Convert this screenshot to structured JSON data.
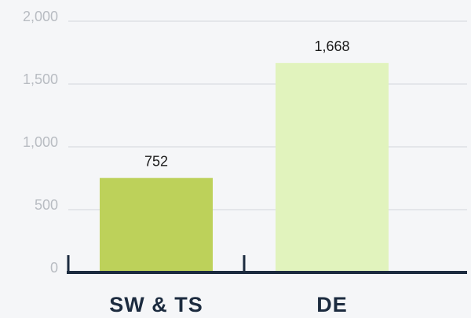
{
  "chart_data": {
    "type": "bar",
    "categories": [
      "SW & TS",
      "DE"
    ],
    "values": [
      752,
      1668
    ],
    "value_labels": [
      "752",
      "1,668"
    ],
    "colors": [
      "#bdd15a",
      "#e1f3bd"
    ],
    "ylim": [
      0,
      2000
    ],
    "yticks": [
      {
        "value": 0,
        "label": "0"
      },
      {
        "value": 500,
        "label": "500"
      },
      {
        "value": 1000,
        "label": "1,000"
      },
      {
        "value": 1500,
        "label": "1,500"
      },
      {
        "value": 2000,
        "label": "2,000"
      }
    ],
    "grid": true
  }
}
